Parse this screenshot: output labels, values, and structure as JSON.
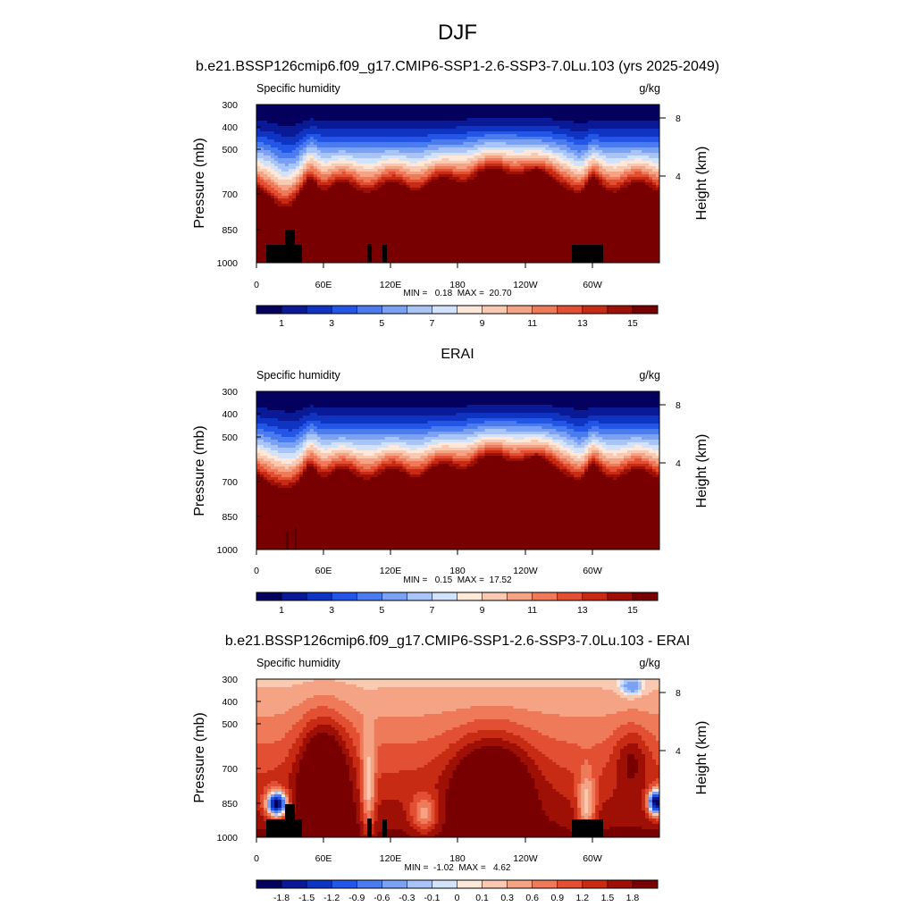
{
  "figure": {
    "title": "DJF"
  },
  "chart_data": [
    {
      "type": "heatmap",
      "title": "b.e21.BSSP126cmip6.f09_g17.CMIP6-SSP1-2.6-SSP3-7.0Lu.103 (yrs 2025-2049)",
      "left_label": "Specific humidity",
      "right_label": "g/kg",
      "ylabel": "Pressure (mb)",
      "y2label": "Height (km)",
      "x_ticks": [
        "0",
        "60E",
        "120E",
        "180",
        "120W",
        "60W"
      ],
      "y_ticks": [
        "300",
        "400",
        "500",
        "700",
        "850",
        "1000"
      ],
      "y2_ticks": [
        "8",
        "4"
      ],
      "stats": "MIN =   0.18  MAX =  20.70",
      "colorbar_labels": [
        "1",
        "3",
        "5",
        "7",
        "9",
        "11",
        "13",
        "15"
      ],
      "field": "model"
    },
    {
      "type": "heatmap",
      "title": "ERAI",
      "left_label": "Specific humidity",
      "right_label": "g/kg",
      "ylabel": "Pressure (mb)",
      "y2label": "Height (km)",
      "x_ticks": [
        "0",
        "60E",
        "120E",
        "180",
        "120W",
        "60W"
      ],
      "y_ticks": [
        "300",
        "400",
        "500",
        "700",
        "850",
        "1000"
      ],
      "y2_ticks": [
        "8",
        "4"
      ],
      "stats": "MIN =   0.15  MAX =  17.52",
      "colorbar_labels": [
        "1",
        "3",
        "5",
        "7",
        "9",
        "11",
        "13",
        "15"
      ],
      "field": "obs"
    },
    {
      "type": "heatmap",
      "title": "b.e21.BSSP126cmip6.f09_g17.CMIP6-SSP1-2.6-SSP3-7.0Lu.103 - ERAI",
      "left_label": "Specific humidity",
      "right_label": "g/kg",
      "ylabel": "Pressure (mb)",
      "y2label": "Height (km)",
      "x_ticks": [
        "0",
        "60E",
        "120E",
        "180",
        "120W",
        "60W"
      ],
      "y_ticks": [
        "300",
        "400",
        "500",
        "700",
        "850",
        "1000"
      ],
      "y2_ticks": [
        "8",
        "4"
      ],
      "stats": "MIN =  -1.02  MAX =   4.62",
      "colorbar_labels": [
        "-1.8",
        "-1.5",
        "-1.2",
        "-0.9",
        "-0.6",
        "-0.3",
        "-0.1",
        "0",
        "0.1",
        "0.3",
        "0.6",
        "0.9",
        "1.2",
        "1.5",
        "1.8"
      ],
      "field": "diff"
    }
  ],
  "colors": {
    "abs_palette": [
      "#04005e",
      "#0a1a96",
      "#0f34c2",
      "#2356e6",
      "#4a7cf0",
      "#7aa1f4",
      "#a9c4f7",
      "#d3e2fb",
      "#fde8da",
      "#f9c9b1",
      "#f4a485",
      "#ee7a59",
      "#e24f32",
      "#c82b14",
      "#9e0f05",
      "#780000"
    ],
    "diff_palette": [
      "#04005e",
      "#0a1a96",
      "#0f34c2",
      "#2356e6",
      "#4a7cf0",
      "#7aa1f4",
      "#a9c4f7",
      "#d3e2fb",
      "#fde8da",
      "#f9c9b1",
      "#f4a485",
      "#ee7a59",
      "#e24f32",
      "#c82b14",
      "#9e0f05",
      "#780000"
    ],
    "topography": "#000000"
  }
}
